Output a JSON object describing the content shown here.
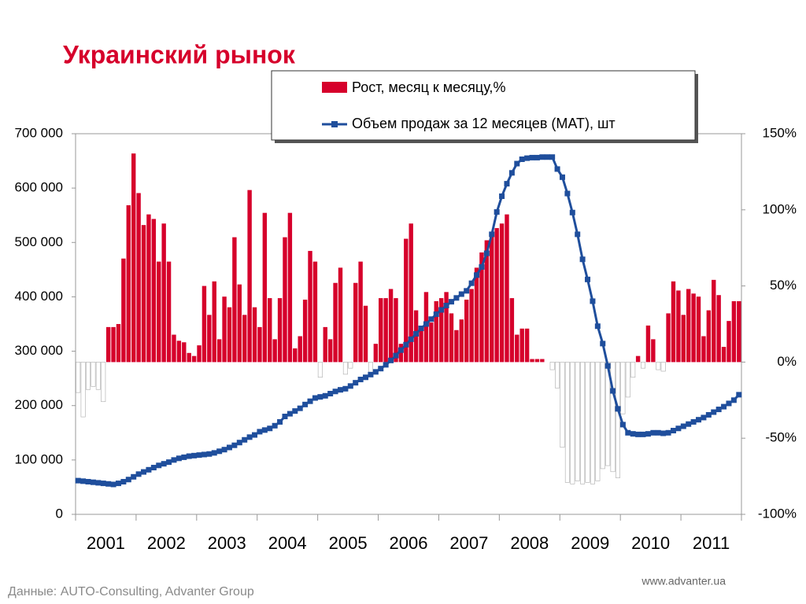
{
  "chart_data": {
    "type": "bar_line",
    "title": "Украинский рынок",
    "source": "Данные: AUTO-Consulting, Advanter Group",
    "site": "www.advanter.ua",
    "categories": [
      "2001",
      null,
      null,
      null,
      null,
      null,
      null,
      null,
      null,
      null,
      null,
      null,
      "2002",
      null,
      null,
      null,
      null,
      null,
      null,
      null,
      null,
      null,
      null,
      null,
      "2003",
      null,
      null,
      null,
      null,
      null,
      null,
      null,
      null,
      null,
      null,
      null,
      "2004",
      null,
      null,
      null,
      null,
      null,
      null,
      null,
      null,
      null,
      null,
      null,
      "2005",
      null,
      null,
      null,
      null,
      null,
      null,
      null,
      null,
      null,
      null,
      null,
      "2006",
      null,
      null,
      null,
      null,
      null,
      null,
      null,
      null,
      null,
      null,
      null,
      "2007",
      null,
      null,
      null,
      null,
      null,
      null,
      null,
      null,
      null,
      null,
      null,
      "2008",
      null,
      null,
      null,
      null,
      null,
      null,
      null,
      null,
      null,
      null,
      null,
      "2009",
      null,
      null,
      null,
      null,
      null,
      null,
      null,
      null,
      null,
      null,
      null,
      "2010",
      null,
      null,
      null,
      null,
      null,
      null,
      null,
      null,
      null,
      null,
      null,
      "2011",
      null,
      null,
      null,
      null,
      null,
      null,
      null,
      null,
      null,
      null,
      null
    ],
    "series": [
      {
        "name": "Рост, месяц к месяцу,%",
        "type": "bar",
        "axis": "y2",
        "color": "#d6002b",
        "negative_color": "#ffffff",
        "values": [
          -20,
          -36,
          -18,
          -16,
          -18,
          -26,
          23,
          23,
          25,
          68,
          103,
          137,
          111,
          90,
          97,
          94,
          66,
          91,
          66,
          18,
          14,
          13,
          6,
          4,
          11,
          50,
          31,
          53,
          15,
          43,
          36,
          82,
          51,
          31,
          113,
          36,
          23,
          98,
          42,
          15,
          42,
          82,
          98,
          9,
          17,
          41,
          73,
          66,
          -10,
          23,
          15,
          52,
          62,
          -8,
          -4,
          52,
          66,
          37,
          -8,
          12,
          42,
          42,
          48,
          42,
          12,
          81,
          91,
          34,
          23,
          46,
          26,
          40,
          42,
          46,
          32,
          21,
          28,
          41,
          48,
          62,
          72,
          80,
          83,
          88,
          91,
          97,
          42,
          18,
          22,
          22,
          2,
          2,
          2,
          0,
          -5,
          -17,
          -56,
          -79,
          -80,
          -78,
          -80,
          -79,
          -80,
          -78,
          -70,
          -68,
          -72,
          -76,
          -34,
          -23,
          -10,
          4,
          -4,
          24,
          15,
          -5,
          -6,
          32,
          53,
          47,
          31,
          48,
          45,
          43,
          17,
          34,
          54,
          44,
          10,
          27,
          40,
          40
        ]
      },
      {
        "name": "Объем продаж за 12 месяцев (МАТ), шт",
        "type": "line",
        "axis": "y",
        "color": "#1f4e9c",
        "values": [
          62000,
          61000,
          60000,
          59000,
          58000,
          57000,
          56000,
          55000,
          57000,
          60000,
          64000,
          69000,
          74000,
          78000,
          82000,
          86000,
          90000,
          93000,
          96000,
          100000,
          103000,
          105000,
          107000,
          108000,
          109000,
          110000,
          111000,
          113000,
          116000,
          119000,
          123000,
          127000,
          132000,
          137000,
          142000,
          146000,
          152000,
          155000,
          158000,
          163000,
          170000,
          180000,
          185000,
          190000,
          195000,
          202000,
          208000,
          214000,
          216000,
          218000,
          222000,
          226000,
          229000,
          231000,
          236000,
          242000,
          248000,
          252000,
          257000,
          262000,
          268000,
          275000,
          283000,
          292000,
          302000,
          312000,
          322000,
          332000,
          342000,
          350000,
          359000,
          368000,
          376000,
          384000,
          391000,
          398000,
          405000,
          411000,
          425000,
          440000,
          455000,
          480000,
          515000,
          556000,
          585000,
          608000,
          628000,
          645000,
          653000,
          655000,
          656000,
          656000,
          657000,
          657000,
          657000,
          635000,
          620000,
          590000,
          555000,
          515000,
          469000,
          432000,
          392000,
          346000,
          314000,
          273000,
          227000,
          194000,
          165000,
          150000,
          148000,
          147000,
          147000,
          148000,
          150000,
          150000,
          149000,
          150000,
          154000,
          158000,
          162000,
          166000,
          170000,
          174000,
          178000,
          183000,
          188000,
          193000,
          198000,
          204000,
          210000,
          220000
        ]
      }
    ],
    "ylim": [
      0,
      700000
    ],
    "yticks": [
      0,
      {
        "value": 100000,
        "label": "100 000"
      },
      {
        "value": 200000,
        "label": "200 000"
      },
      {
        "value": 300000,
        "label": "300 000"
      },
      {
        "value": 400000,
        "label": "400 000"
      },
      {
        "value": 500000,
        "label": "500 000"
      },
      {
        "value": 600000,
        "label": "600 000"
      },
      {
        "value": 700000,
        "label": "700 000"
      }
    ],
    "y2lim": [
      -100,
      150
    ],
    "y2ticks": [
      {
        "value": -100,
        "label": "-100%"
      },
      {
        "value": -50,
        "label": "-50%"
      },
      {
        "value": 0,
        "label": "0%"
      },
      {
        "value": 50,
        "label": "50%"
      },
      {
        "value": 100,
        "label": "100%"
      },
      {
        "value": 150,
        "label": "150%"
      }
    ],
    "grid": false
  }
}
